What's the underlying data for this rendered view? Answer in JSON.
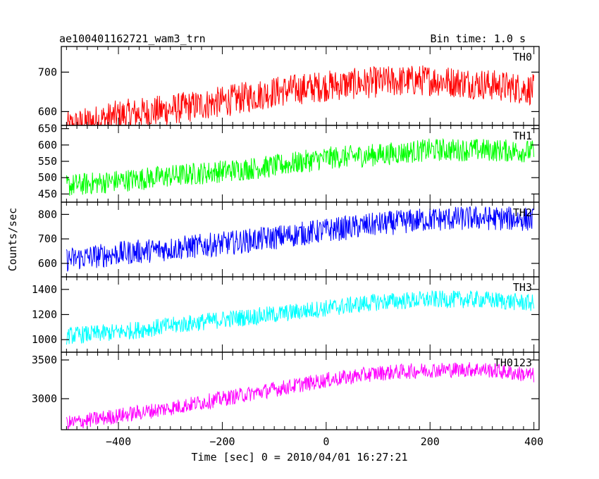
{
  "header": {
    "title": "ae100401162721_wam3_trn",
    "bin_time": "Bin time: 1.0 s"
  },
  "axes": {
    "ylabel": "Counts/sec",
    "xlabel": "Time [sec] 0 = 2010/04/01 16:27:21"
  },
  "chart_data": [
    {
      "type": "line",
      "name": "TH0",
      "color": "#ff0000",
      "xlim": [
        -510,
        410
      ],
      "ylim": [
        565,
        765
      ],
      "yticks": [
        600,
        700
      ],
      "ytick_labels": [
        "600",
        "700"
      ],
      "x": [
        -500,
        -400,
        -300,
        -200,
        -100,
        0,
        100,
        200,
        300,
        400
      ],
      "y": [
        560,
        590,
        605,
        625,
        650,
        665,
        675,
        680,
        670,
        655
      ],
      "noise_amplitude": 40,
      "grid": false
    },
    {
      "type": "line",
      "name": "TH1",
      "color": "#00ff00",
      "xlim": [
        -510,
        410
      ],
      "ylim": [
        425,
        660
      ],
      "yticks": [
        450,
        500,
        550,
        600,
        650
      ],
      "ytick_labels": [
        "450",
        "500",
        "550",
        "600",
        "650"
      ],
      "x": [
        -500,
        -400,
        -300,
        -200,
        -100,
        0,
        100,
        200,
        300,
        400
      ],
      "y": [
        475,
        490,
        505,
        520,
        535,
        560,
        570,
        585,
        585,
        580
      ],
      "noise_amplitude": 35,
      "grid": false
    },
    {
      "type": "line",
      "name": "TH2",
      "color": "#0000ff",
      "xlim": [
        -510,
        410
      ],
      "ylim": [
        545,
        850
      ],
      "yticks": [
        600,
        700,
        800
      ],
      "ytick_labels": [
        "600",
        "700",
        "800"
      ],
      "x": [
        -500,
        -400,
        -300,
        -200,
        -100,
        0,
        100,
        200,
        300,
        400
      ],
      "y": [
        615,
        640,
        660,
        680,
        705,
        735,
        760,
        780,
        785,
        780
      ],
      "noise_amplitude": 50,
      "grid": false
    },
    {
      "type": "line",
      "name": "TH3",
      "color": "#00ffff",
      "xlim": [
        -510,
        410
      ],
      "ylim": [
        900,
        1500
      ],
      "yticks": [
        1000,
        1200,
        1400
      ],
      "ytick_labels": [
        "1000",
        "1200",
        "1400"
      ],
      "x": [
        -500,
        -400,
        -300,
        -200,
        -100,
        0,
        100,
        200,
        300,
        400
      ],
      "y": [
        1030,
        1060,
        1110,
        1160,
        1200,
        1250,
        1300,
        1320,
        1320,
        1290
      ],
      "noise_amplitude": 70,
      "grid": false
    },
    {
      "type": "line",
      "name": "TH0123",
      "color": "#ff00ff",
      "xlim": [
        -510,
        410
      ],
      "ylim": [
        2600,
        3600
      ],
      "yticks": [
        3000,
        3500
      ],
      "ytick_labels": [
        "3000",
        "3500"
      ],
      "x": [
        -500,
        -400,
        -300,
        -200,
        -100,
        0,
        100,
        200,
        300,
        400
      ],
      "y": [
        2680,
        2780,
        2880,
        3000,
        3120,
        3240,
        3330,
        3370,
        3380,
        3300
      ],
      "noise_amplitude": 100,
      "grid": false,
      "xticks": [
        -400,
        -200,
        0,
        200,
        400
      ],
      "xtick_labels": [
        "−400",
        "−200",
        "0",
        "200",
        "400"
      ]
    }
  ]
}
